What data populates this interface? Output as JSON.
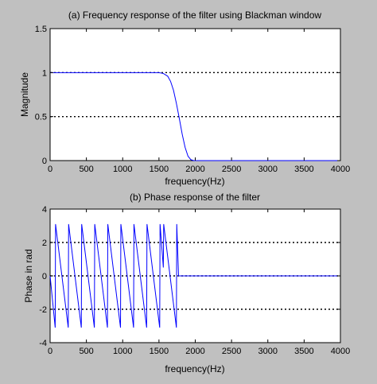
{
  "colors": {
    "background": "#c0c0c0",
    "plot_bg": "#ffffff",
    "line": "#0000ff",
    "grid": "#000000"
  },
  "chart_data": [
    {
      "type": "line",
      "title": "(a) Frequency response of the filter using Blackman window",
      "xlabel": "frequency(Hz)",
      "ylabel": "Magnitude",
      "xlim": [
        0,
        4000
      ],
      "ylim": [
        0,
        1.5
      ],
      "xticks": [
        0,
        500,
        1000,
        1500,
        2000,
        2500,
        3000,
        3500,
        4000
      ],
      "yticks": [
        0,
        0.5,
        1,
        1.5
      ],
      "xtick_labels": [
        "0",
        "500",
        "1000",
        "1500",
        "2000",
        "2500",
        "3000",
        "3500",
        "4000"
      ],
      "ytick_labels": [
        "0",
        "0.5",
        "1",
        "1.5"
      ],
      "grid": true,
      "series": [
        {
          "x": [
            0,
            200,
            400,
            600,
            800,
            1000,
            1200,
            1400,
            1500,
            1560,
            1620,
            1660,
            1700,
            1740,
            1780,
            1820,
            1860,
            1900,
            1940,
            1980,
            2000,
            2500,
            3000,
            3500,
            4000
          ],
          "y": [
            1.0,
            1.0,
            1.0,
            1.0,
            1.0,
            1.0,
            1.0,
            1.0,
            1.0,
            0.99,
            0.96,
            0.9,
            0.8,
            0.65,
            0.48,
            0.3,
            0.15,
            0.05,
            0.01,
            0.0,
            0.0,
            0.0,
            0.0,
            0.0,
            0.0
          ]
        }
      ]
    },
    {
      "type": "line",
      "title": "(b) Phase response of the filter",
      "xlabel": "frequency(Hz)",
      "ylabel": "Phase in rad",
      "xlim": [
        0,
        4000
      ],
      "ylim": [
        -4,
        4
      ],
      "xticks": [
        0,
        500,
        1000,
        1500,
        2000,
        2500,
        3000,
        3500,
        4000
      ],
      "yticks": [
        -4,
        -2,
        0,
        2,
        4
      ],
      "xtick_labels": [
        "0",
        "500",
        "1000",
        "1500",
        "2000",
        "2500",
        "3000",
        "3500",
        "4000"
      ],
      "ytick_labels": [
        "-4",
        "-2",
        "0",
        "2",
        "4"
      ],
      "grid": true,
      "series": [
        {
          "x": [
            0,
            70,
            75,
            250,
            255,
            430,
            435,
            610,
            615,
            790,
            795,
            970,
            975,
            1150,
            1155,
            1330,
            1335,
            1510,
            1515,
            1560,
            1565,
            1740,
            1745,
            1770,
            1780,
            2000,
            3000,
            4000
          ],
          "y": [
            0,
            -3.1,
            3.1,
            -3.1,
            3.1,
            -3.1,
            3.1,
            -3.1,
            3.1,
            -3.1,
            3.1,
            -3.1,
            3.1,
            -3.1,
            3.1,
            -3.1,
            3.1,
            -3.1,
            3.1,
            0.5,
            3.1,
            -3.1,
            3.1,
            0.0,
            0.0,
            0.0,
            0.0,
            0.0
          ]
        }
      ]
    }
  ]
}
